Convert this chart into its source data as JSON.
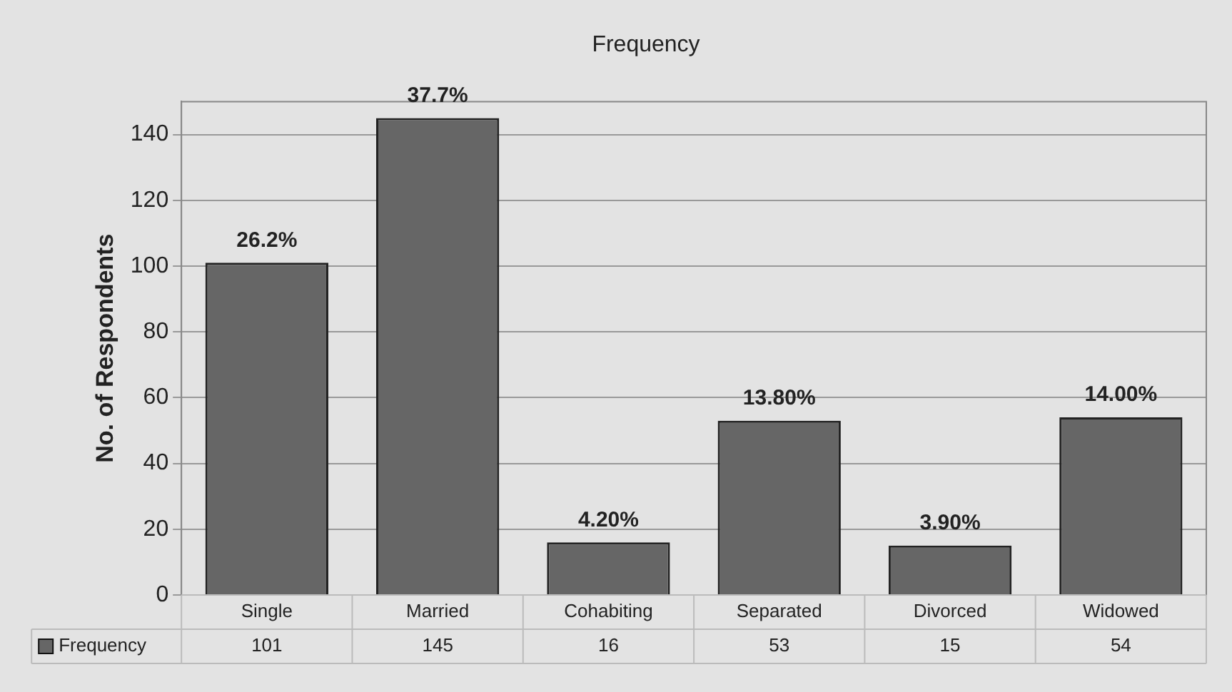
{
  "chart_data": {
    "type": "bar",
    "title": "Frequency",
    "ylabel": "No. of Respondents",
    "categories": [
      "Single",
      "Married",
      "Cohabiting",
      "Separated",
      "Divorced",
      "Widowed"
    ],
    "series": [
      {
        "name": "Frequency",
        "color": "#666666",
        "values": [
          101,
          145,
          16,
          53,
          15,
          54
        ]
      }
    ],
    "annotations": [
      {
        "text": "26.2%",
        "x": "Single",
        "y": 101
      },
      {
        "text": "37.7%",
        "x": "Married",
        "y": 145
      },
      {
        "text": "4.20%",
        "x": "Cohabiting",
        "y": 16
      },
      {
        "text": "13.80%",
        "x": "Separated",
        "y": 53
      },
      {
        "text": "3.90%",
        "x": "Divorced",
        "y": 15
      },
      {
        "text": "14.00%",
        "x": "Widowed",
        "y": 54
      }
    ],
    "ylim": [
      0,
      150
    ],
    "yticks": [
      0,
      20,
      40,
      60,
      80,
      100,
      120,
      140
    ],
    "grid": "y",
    "data_labels": true
  }
}
